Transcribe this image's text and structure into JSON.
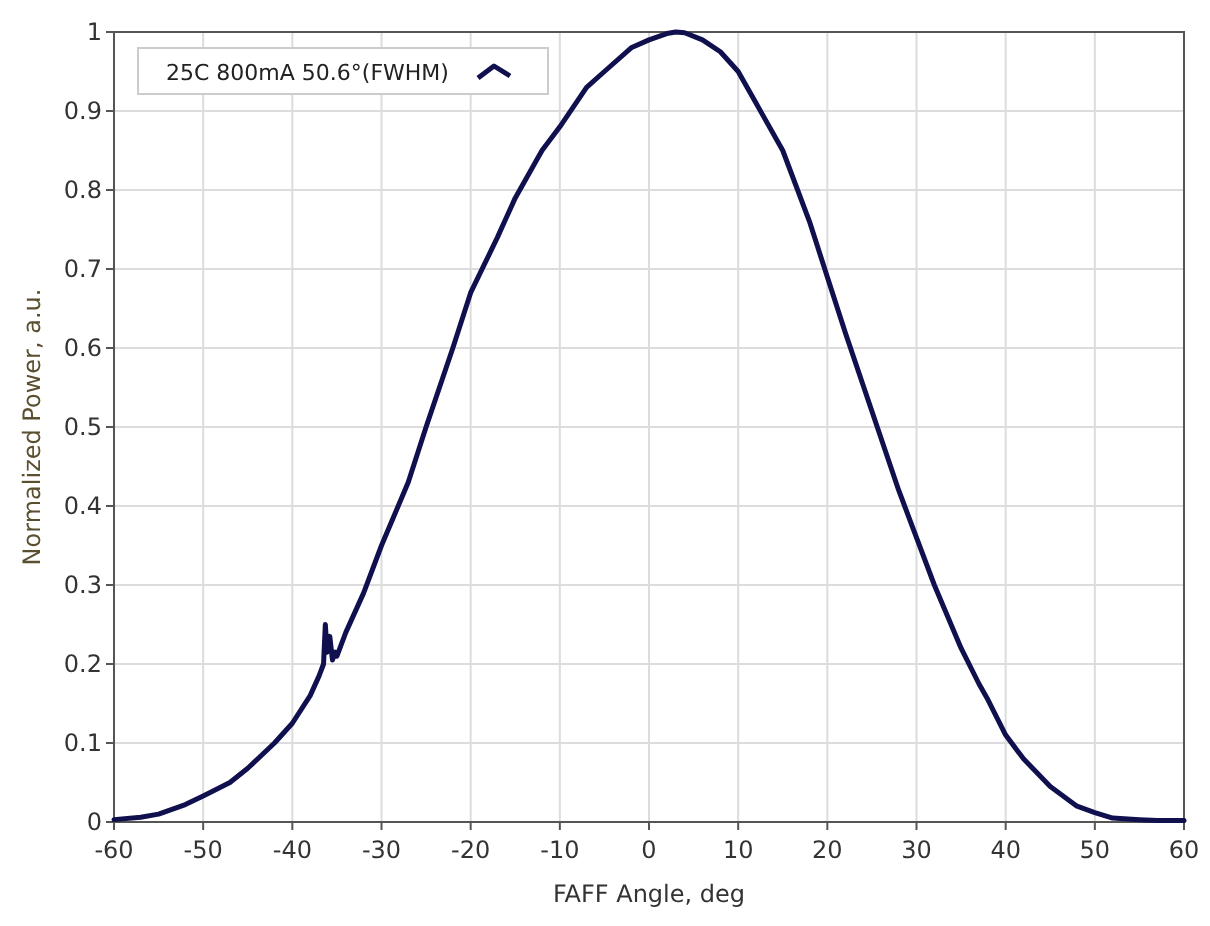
{
  "chart_data": {
    "type": "line",
    "xlabel": "FAFF Angle, deg",
    "ylabel": "Normalized Power, a.u.",
    "xlim": [
      -60,
      60
    ],
    "xticks": [
      -60,
      -50,
      -40,
      -30,
      -20,
      -10,
      0,
      10,
      20,
      30,
      40,
      50,
      60
    ],
    "ylim": [
      0,
      1
    ],
    "yticks": [
      0,
      0.1,
      0.2,
      0.3,
      0.4,
      0.5,
      0.6,
      0.7,
      0.8,
      0.9,
      1
    ],
    "grid": true,
    "legend": "top left",
    "line_style": "solid",
    "series": [
      {
        "name": "25C 800mA 50.6°(FWHM)",
        "color": "#10104f",
        "x": [
          -60,
          -57,
          -55,
          -52,
          -50,
          -47,
          -45,
          -42,
          -40,
          -38,
          -37,
          -36.5,
          -36.3,
          -36.1,
          -35.8,
          -35.5,
          -35.2,
          -35,
          -34,
          -32,
          -30,
          -27,
          -25,
          -22,
          -20,
          -17,
          -15,
          -12,
          -10,
          -7,
          -5,
          -2,
          0,
          2,
          3,
          4,
          6,
          8,
          10,
          12,
          15,
          18,
          20,
          22,
          25,
          28,
          30,
          32,
          35,
          37,
          38,
          40,
          42,
          45,
          48,
          50,
          52,
          55,
          57,
          60
        ],
        "values": [
          0.003,
          0.006,
          0.01,
          0.022,
          0.033,
          0.05,
          0.068,
          0.1,
          0.125,
          0.16,
          0.185,
          0.2,
          0.25,
          0.215,
          0.235,
          0.205,
          0.215,
          0.21,
          0.24,
          0.29,
          0.35,
          0.43,
          0.5,
          0.6,
          0.67,
          0.74,
          0.79,
          0.85,
          0.88,
          0.93,
          0.95,
          0.98,
          0.99,
          0.998,
          1,
          0.999,
          0.99,
          0.975,
          0.95,
          0.91,
          0.85,
          0.76,
          0.69,
          0.62,
          0.52,
          0.42,
          0.36,
          0.3,
          0.22,
          0.175,
          0.155,
          0.11,
          0.08,
          0.045,
          0.02,
          0.012,
          0.005,
          0.003,
          0.002,
          0.002
        ]
      }
    ]
  }
}
